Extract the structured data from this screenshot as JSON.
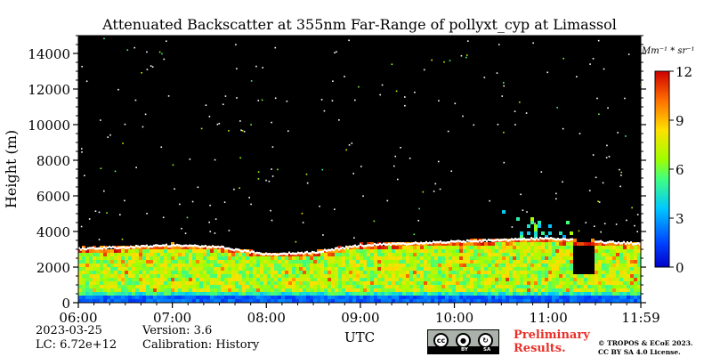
{
  "chart_data": {
    "type": "heatmap",
    "title": "Attenuated Backscatter at 355nm Far-Range of pollyxt_cyp at Limassol",
    "xlabel": "UTC",
    "ylabel": "Height (m)",
    "x_ticks": [
      "06:00",
      "07:00",
      "08:00",
      "09:00",
      "10:00",
      "11:00",
      "11:59"
    ],
    "x_range_hours": [
      6.0,
      11.983
    ],
    "y_ticks": [
      0,
      2000,
      4000,
      6000,
      8000,
      10000,
      12000,
      14000
    ],
    "ylim": [
      0,
      15000
    ],
    "colorbar": {
      "unit_label": "Mm⁻¹ * sr⁻¹",
      "ticks": [
        0,
        3,
        6,
        9,
        12
      ],
      "range": [
        0,
        12
      ],
      "colormap": "jet"
    },
    "features": {
      "boundary_layer_top_m": [
        {
          "time": "06:00",
          "height": 3000
        },
        {
          "time": "06:30",
          "height": 3100
        },
        {
          "time": "07:00",
          "height": 3200
        },
        {
          "time": "07:30",
          "height": 3100
        },
        {
          "time": "08:00",
          "height": 2700
        },
        {
          "time": "08:30",
          "height": 2800
        },
        {
          "time": "09:00",
          "height": 3200
        },
        {
          "time": "09:30",
          "height": 3300
        },
        {
          "time": "10:00",
          "height": 3400
        },
        {
          "time": "10:30",
          "height": 3500
        },
        {
          "time": "11:00",
          "height": 3600
        },
        {
          "time": "11:30",
          "height": 3400
        },
        {
          "time": "11:59",
          "height": 3300
        }
      ],
      "elevated_layer": {
        "time_start": "10:30",
        "time_end": "11:20",
        "height_top_m": 5300
      },
      "signal_gap": {
        "time_start": "11:16",
        "time_end": "11:30",
        "height_bottom_m": 1700,
        "height_top_m": 3200
      },
      "noise_background": "black"
    }
  },
  "footer": {
    "date": "2023-03-25",
    "lc": "LC: 6.72e+12",
    "version": "Version: 3.6",
    "calibration": "Calibration: History",
    "preliminary_line1": "Preliminary",
    "preliminary_line2": "Results.",
    "copyright_line1": "© TROPOS & ECoE 2023.",
    "copyright_line2": "CC BY SA 4.0 License.",
    "license_badge": {
      "cc": "cc",
      "by": "BY",
      "sa": "SA"
    }
  },
  "colors": {
    "background": "#000000",
    "preliminary": "#e8312a"
  }
}
